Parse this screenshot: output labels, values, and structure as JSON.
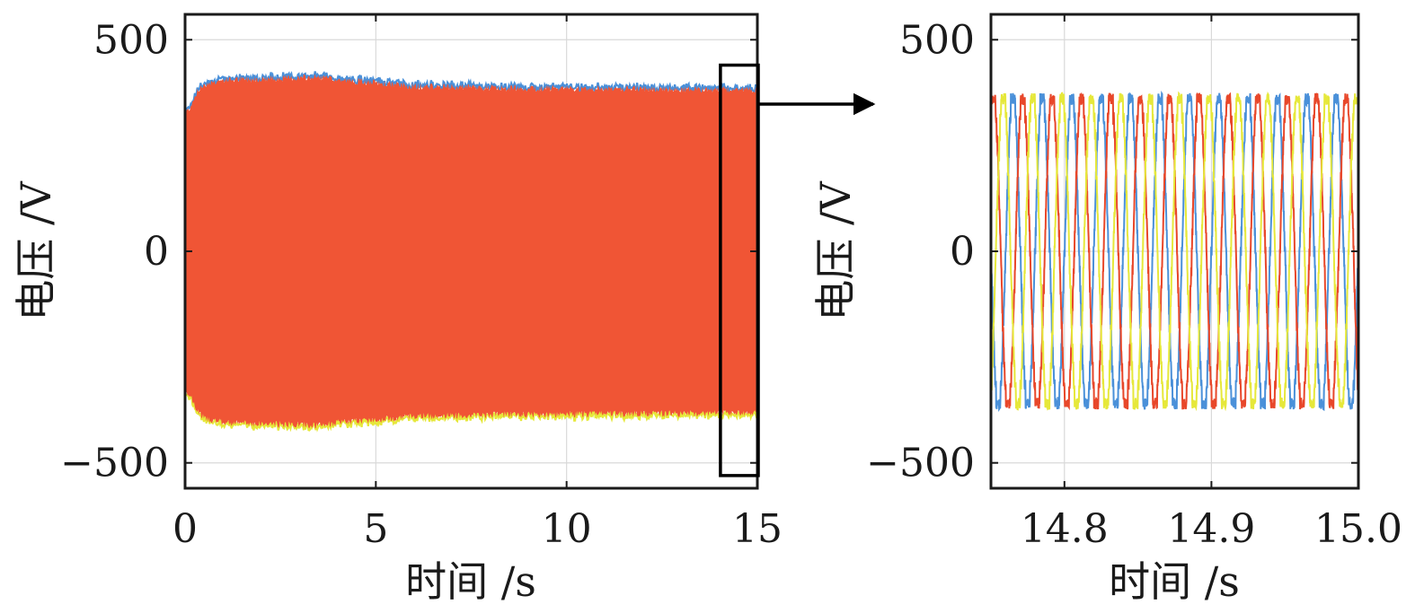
{
  "colors": {
    "phase_a": "#0072BD",
    "phase_b": "#D95319",
    "phase_c": "#EDB120",
    "fill_overview": "#F05535",
    "zoom_phase_a": "#4A90D9",
    "zoom_phase_b": "#E8472A",
    "zoom_phase_c": "#E6E83A",
    "axes": "#1a1a1a",
    "grid": "#d9d9d9"
  },
  "chart_data": [
    {
      "type": "line",
      "xlabel": "时间 /s",
      "ylabel": "电压 /V",
      "xlim": [
        0,
        15
      ],
      "ylim": [
        -560,
        560
      ],
      "xticks": [
        0,
        5,
        10,
        15
      ],
      "xtick_labels": [
        "0",
        "5",
        "10",
        "15"
      ],
      "yticks": [
        -500,
        0,
        500
      ],
      "ytick_labels": [
        "−500",
        "0",
        "500"
      ],
      "grid": true,
      "envelope": {
        "t": [
          0,
          0.1,
          0.3,
          0.5,
          1,
          2,
          3,
          3.5,
          4,
          5,
          6,
          7,
          8,
          9,
          10,
          11,
          12,
          13,
          14,
          14.5,
          15
        ],
        "upper": [
          330,
          335,
          375,
          395,
          405,
          408,
          410,
          412,
          405,
          398,
          390,
          388,
          386,
          386,
          385,
          385,
          384,
          384,
          383,
          382,
          382
        ],
        "lower": [
          -330,
          -335,
          -375,
          -395,
          -405,
          -408,
          -410,
          -412,
          -405,
          -398,
          -390,
          -388,
          -386,
          -386,
          -385,
          -385,
          -384,
          -384,
          -383,
          -382,
          -382
        ]
      },
      "zoom_box": {
        "x": [
          14.55,
          15.0
        ],
        "y": [
          -530,
          440
        ]
      },
      "series": [
        {
          "phase": "a",
          "amplitude": 380,
          "frequency_hz": 50,
          "phase_deg": 0
        },
        {
          "phase": "b",
          "amplitude": 380,
          "frequency_hz": 50,
          "phase_deg": -120
        },
        {
          "phase": "c",
          "amplitude": 380,
          "frequency_hz": 50,
          "phase_deg": 120
        }
      ]
    },
    {
      "type": "line",
      "xlabel": "时间 /s",
      "ylabel": "电压 /V",
      "xlim": [
        14.75,
        15.0
      ],
      "ylim": [
        -560,
        560
      ],
      "xticks": [
        14.8,
        14.9,
        15.0
      ],
      "xtick_labels": [
        "14.8",
        "14.9",
        "15.0"
      ],
      "yticks": [
        -500,
        0,
        500
      ],
      "ytick_labels": [
        "−500",
        "0",
        "500"
      ],
      "grid": true,
      "series": [
        {
          "phase": "a",
          "amplitude": 380,
          "frequency_hz": 50,
          "phase_deg": 0
        },
        {
          "phase": "b",
          "amplitude": 380,
          "frequency_hz": 50,
          "phase_deg": -120
        },
        {
          "phase": "c",
          "amplitude": 380,
          "frequency_hz": 50,
          "phase_deg": 120
        }
      ]
    }
  ]
}
